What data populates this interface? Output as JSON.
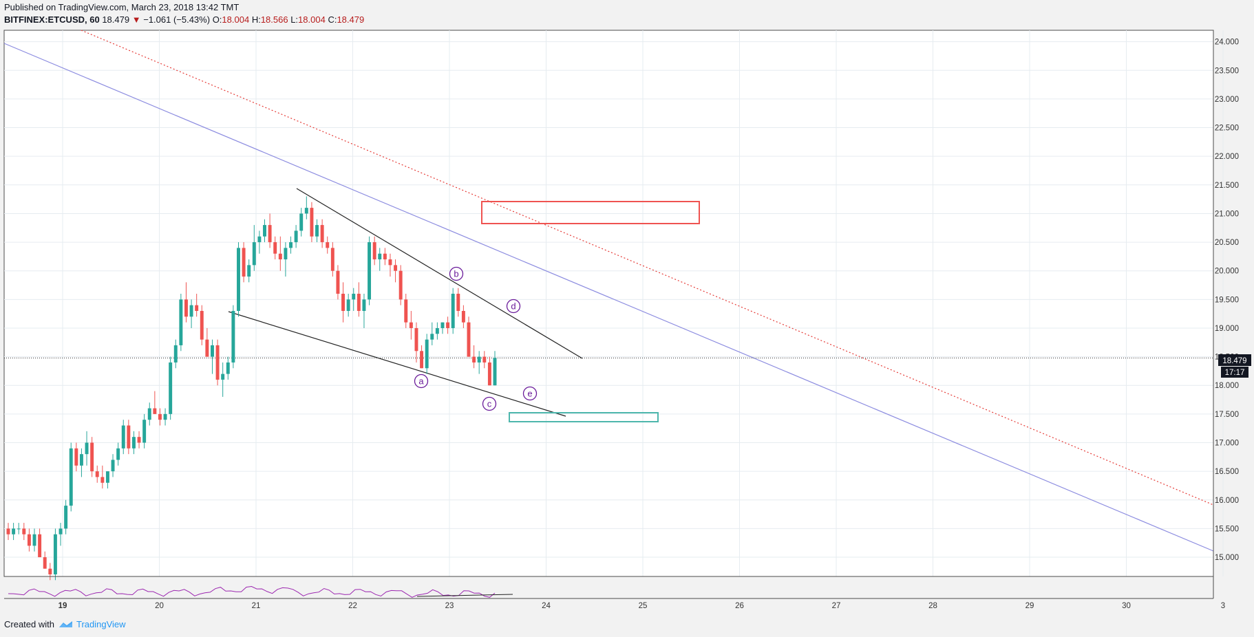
{
  "header": {
    "published": "Published on TradingView.com, March 23, 2018 13:42 TMT",
    "symbol": "BITFINEX:ETCUSD, 60",
    "last": "18.479",
    "down_arrow": "▼",
    "change": "−1.061 (−5.43%)",
    "o_label": "O:",
    "o_value": "18.004",
    "h_label": "H:",
    "h_value": "18.566",
    "l_label": "L:",
    "l_value": "18.004",
    "c_label": "C:",
    "c_value": "18.479"
  },
  "footer": {
    "created_with": "Created with",
    "brand": "TradingView"
  },
  "price_badge": "18.479",
  "countdown_badge": "17:17",
  "colors": {
    "up": "#26a69a",
    "down": "#ef5350",
    "purple_line": "#8c8ce0",
    "red_dotted": "#e53935",
    "red_box": "#ef5350",
    "teal_box": "#4db6ac",
    "rsi": "#9c27b0",
    "label_circle": "#6a1b9a"
  },
  "chart_data": {
    "type": "candlestick",
    "x_tick_labels": [
      "19",
      "20",
      "21",
      "22",
      "23",
      "24",
      "25",
      "26",
      "27",
      "28",
      "29",
      "30",
      "3"
    ],
    "y_tick_labels": [
      "24.000",
      "23.500",
      "23.000",
      "22.500",
      "22.000",
      "21.500",
      "21.000",
      "20.500",
      "20.000",
      "19.500",
      "19.000",
      "18.500",
      "18.000",
      "17.500",
      "17.000",
      "16.500",
      "16.000",
      "15.500",
      "15.000"
    ],
    "ylim": [
      14.7,
      24.2
    ],
    "xlim_days": [
      18.4,
      31.0
    ],
    "wave_labels": [
      "a",
      "b",
      "c",
      "d",
      "e"
    ],
    "candles": [
      [
        15.5,
        15.6,
        15.3,
        15.4
      ],
      [
        15.4,
        15.6,
        15.3,
        15.5
      ],
      [
        15.5,
        15.6,
        15.4,
        15.5
      ],
      [
        15.5,
        15.6,
        15.3,
        15.4
      ],
      [
        15.4,
        15.5,
        15.1,
        15.2
      ],
      [
        15.2,
        15.5,
        15.1,
        15.4
      ],
      [
        15.4,
        15.5,
        15.0,
        15.0
      ],
      [
        15.0,
        15.1,
        14.8,
        14.8
      ],
      [
        14.8,
        14.9,
        14.6,
        14.7
      ],
      [
        14.7,
        15.5,
        14.6,
        15.4
      ],
      [
        15.4,
        15.6,
        15.2,
        15.5
      ],
      [
        15.5,
        16.0,
        15.4,
        15.9
      ],
      [
        15.9,
        17.0,
        15.8,
        16.9
      ],
      [
        16.9,
        17.0,
        16.5,
        16.6
      ],
      [
        16.6,
        16.9,
        16.4,
        16.8
      ],
      [
        16.8,
        17.2,
        16.6,
        17.0
      ],
      [
        17.0,
        17.1,
        16.4,
        16.5
      ],
      [
        16.5,
        16.6,
        16.3,
        16.4
      ],
      [
        16.4,
        16.6,
        16.2,
        16.3
      ],
      [
        16.3,
        16.5,
        16.2,
        16.5
      ],
      [
        16.5,
        16.8,
        16.4,
        16.7
      ],
      [
        16.7,
        17.0,
        16.6,
        16.9
      ],
      [
        16.9,
        17.4,
        16.8,
        17.3
      ],
      [
        17.3,
        17.4,
        16.8,
        16.9
      ],
      [
        16.9,
        17.2,
        16.8,
        17.1
      ],
      [
        17.1,
        17.2,
        16.9,
        17.0
      ],
      [
        17.0,
        17.5,
        16.9,
        17.4
      ],
      [
        17.4,
        17.7,
        17.3,
        17.6
      ],
      [
        17.6,
        17.9,
        17.5,
        17.5
      ],
      [
        17.5,
        17.6,
        17.3,
        17.4
      ],
      [
        17.4,
        17.6,
        17.3,
        17.5
      ],
      [
        17.5,
        18.5,
        17.4,
        18.4
      ],
      [
        18.4,
        18.8,
        18.3,
        18.7
      ],
      [
        18.7,
        19.6,
        18.6,
        19.5
      ],
      [
        19.5,
        19.8,
        19.1,
        19.2
      ],
      [
        19.2,
        19.5,
        19.0,
        19.4
      ],
      [
        19.4,
        19.6,
        19.2,
        19.3
      ],
      [
        19.3,
        19.4,
        18.7,
        18.8
      ],
      [
        18.8,
        19.0,
        18.5,
        18.5
      ],
      [
        18.5,
        18.8,
        18.2,
        18.7
      ],
      [
        18.7,
        18.8,
        18.0,
        18.1
      ],
      [
        18.1,
        18.4,
        17.8,
        18.2
      ],
      [
        18.2,
        18.5,
        18.1,
        18.4
      ],
      [
        18.4,
        19.4,
        18.3,
        19.3
      ],
      [
        19.3,
        20.5,
        19.2,
        20.4
      ],
      [
        20.4,
        20.5,
        19.8,
        19.9
      ],
      [
        19.9,
        20.2,
        19.8,
        20.1
      ],
      [
        20.1,
        20.8,
        20.0,
        20.5
      ],
      [
        20.5,
        20.7,
        20.3,
        20.6
      ],
      [
        20.6,
        20.9,
        20.5,
        20.8
      ],
      [
        20.8,
        21.0,
        20.4,
        20.5
      ],
      [
        20.5,
        20.6,
        20.2,
        20.3
      ],
      [
        20.3,
        20.6,
        20.0,
        20.2
      ],
      [
        20.2,
        20.5,
        19.9,
        20.4
      ],
      [
        20.4,
        20.6,
        20.3,
        20.5
      ],
      [
        20.5,
        20.8,
        20.4,
        20.7
      ],
      [
        20.7,
        21.1,
        20.6,
        21.0
      ],
      [
        21.0,
        21.3,
        20.9,
        21.1
      ],
      [
        21.1,
        21.2,
        20.5,
        20.6
      ],
      [
        20.6,
        20.9,
        20.5,
        20.8
      ],
      [
        20.8,
        20.9,
        20.4,
        20.5
      ],
      [
        20.5,
        20.6,
        20.3,
        20.4
      ],
      [
        20.4,
        20.5,
        19.9,
        20.0
      ],
      [
        20.0,
        20.1,
        19.5,
        19.6
      ],
      [
        19.6,
        19.8,
        19.1,
        19.3
      ],
      [
        19.3,
        19.6,
        19.2,
        19.5
      ],
      [
        19.5,
        19.7,
        19.3,
        19.6
      ],
      [
        19.6,
        19.8,
        19.2,
        19.3
      ],
      [
        19.3,
        19.6,
        19.0,
        19.5
      ],
      [
        19.5,
        20.6,
        19.4,
        20.5
      ],
      [
        20.5,
        20.6,
        20.1,
        20.2
      ],
      [
        20.2,
        20.4,
        20.0,
        20.3
      ],
      [
        20.3,
        20.4,
        20.1,
        20.2
      ],
      [
        20.2,
        20.3,
        19.9,
        20.1
      ],
      [
        20.1,
        20.2,
        19.8,
        20.0
      ],
      [
        20.0,
        20.1,
        19.4,
        19.5
      ],
      [
        19.5,
        19.6,
        19.0,
        19.1
      ],
      [
        19.1,
        19.3,
        18.8,
        19.0
      ],
      [
        19.0,
        19.1,
        18.4,
        18.6
      ],
      [
        18.6,
        18.7,
        18.3,
        18.3
      ],
      [
        18.3,
        18.9,
        18.2,
        18.8
      ],
      [
        18.8,
        19.1,
        18.7,
        18.9
      ],
      [
        18.9,
        19.1,
        18.8,
        19.0
      ],
      [
        19.0,
        19.1,
        18.9,
        19.1
      ],
      [
        19.1,
        19.2,
        18.9,
        19.0
      ],
      [
        19.0,
        19.7,
        18.9,
        19.6
      ],
      [
        19.6,
        19.7,
        19.2,
        19.3
      ],
      [
        19.3,
        19.4,
        19.0,
        19.1
      ],
      [
        19.1,
        19.2,
        18.5,
        18.5
      ],
      [
        18.5,
        18.7,
        18.3,
        18.4
      ],
      [
        18.4,
        18.6,
        18.2,
        18.5
      ],
      [
        18.5,
        18.6,
        18.3,
        18.4
      ],
      [
        18.4,
        18.5,
        18.0,
        18.0
      ],
      [
        18.0,
        18.6,
        18.0,
        18.479
      ]
    ]
  }
}
